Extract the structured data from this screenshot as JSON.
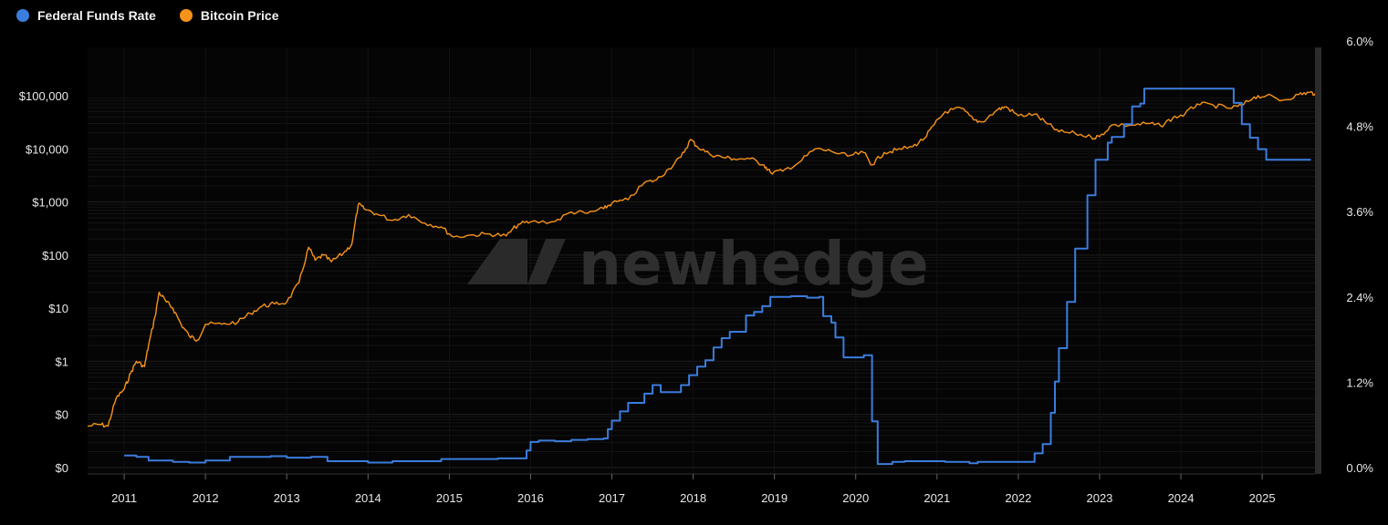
{
  "legend": {
    "items": [
      {
        "label": "Federal Funds Rate",
        "color": "#3b7ddd"
      },
      {
        "label": "Bitcoin Price",
        "color": "#f7931a"
      }
    ]
  },
  "watermark": {
    "text": "newhedge"
  },
  "chart_data": {
    "type": "line",
    "grid": true,
    "legend_position": "top-left",
    "x_ticks": [
      "2011",
      "2012",
      "2013",
      "2014",
      "2015",
      "2016",
      "2017",
      "2018",
      "2019",
      "2020",
      "2021",
      "2022",
      "2023",
      "2024",
      "2025"
    ],
    "x_range": [
      2010.55,
      2025.65
    ],
    "left_axis": {
      "scale": "log",
      "ticks": [
        {
          "label": "$0",
          "value": 0.01
        },
        {
          "label": "$0",
          "value": 0.1
        },
        {
          "label": "$1",
          "value": 1
        },
        {
          "label": "$10",
          "value": 10
        },
        {
          "label": "$100",
          "value": 100
        },
        {
          "label": "$1,000",
          "value": 1000
        },
        {
          "label": "$10,000",
          "value": 10000
        },
        {
          "label": "$100,000",
          "value": 100000
        }
      ]
    },
    "right_axis": {
      "scale": "linear",
      "range": [
        0,
        6
      ],
      "ticks": [
        "0.0%",
        "1.2%",
        "2.4%",
        "3.6%",
        "4.8%",
        "6.0%"
      ]
    },
    "series": [
      {
        "name": "Bitcoin Price",
        "axis": "left",
        "color": "#f7931a",
        "points": [
          [
            2010.55,
            0.06
          ],
          [
            2010.7,
            0.065
          ],
          [
            2010.8,
            0.06
          ],
          [
            2010.9,
            0.2
          ],
          [
            2011.0,
            0.3
          ],
          [
            2011.08,
            0.6
          ],
          [
            2011.15,
            1.0
          ],
          [
            2011.25,
            0.8
          ],
          [
            2011.3,
            2.0
          ],
          [
            2011.38,
            7.0
          ],
          [
            2011.43,
            20
          ],
          [
            2011.52,
            13
          ],
          [
            2011.6,
            10
          ],
          [
            2011.7,
            5
          ],
          [
            2011.8,
            3
          ],
          [
            2011.9,
            2.5
          ],
          [
            2012.0,
            5
          ],
          [
            2012.2,
            5
          ],
          [
            2012.4,
            5.5
          ],
          [
            2012.55,
            8
          ],
          [
            2012.7,
            11
          ],
          [
            2012.85,
            12
          ],
          [
            2013.0,
            13
          ],
          [
            2013.15,
            30
          ],
          [
            2013.27,
            140
          ],
          [
            2013.35,
            80
          ],
          [
            2013.45,
            100
          ],
          [
            2013.55,
            75
          ],
          [
            2013.7,
            110
          ],
          [
            2013.8,
            160
          ],
          [
            2013.88,
            900
          ],
          [
            2013.95,
            750
          ],
          [
            2014.1,
            600
          ],
          [
            2014.3,
            450
          ],
          [
            2014.5,
            580
          ],
          [
            2014.7,
            400
          ],
          [
            2014.9,
            340
          ],
          [
            2015.05,
            220
          ],
          [
            2015.3,
            240
          ],
          [
            2015.5,
            250
          ],
          [
            2015.7,
            230
          ],
          [
            2015.85,
            380
          ],
          [
            2016.0,
            420
          ],
          [
            2016.3,
            430
          ],
          [
            2016.5,
            650
          ],
          [
            2016.7,
            610
          ],
          [
            2016.9,
            750
          ],
          [
            2017.0,
            950
          ],
          [
            2017.2,
            1100
          ],
          [
            2017.4,
            2300
          ],
          [
            2017.55,
            2600
          ],
          [
            2017.7,
            4200
          ],
          [
            2017.85,
            7000
          ],
          [
            2017.97,
            15000
          ],
          [
            2018.05,
            11000
          ],
          [
            2018.2,
            8000
          ],
          [
            2018.35,
            7000
          ],
          [
            2018.5,
            6500
          ],
          [
            2018.7,
            6500
          ],
          [
            2018.87,
            5000
          ],
          [
            2018.95,
            3600
          ],
          [
            2019.1,
            3800
          ],
          [
            2019.3,
            5500
          ],
          [
            2019.5,
            10000
          ],
          [
            2019.7,
            9000
          ],
          [
            2019.9,
            7300
          ],
          [
            2020.1,
            8500
          ],
          [
            2020.2,
            5000
          ],
          [
            2020.35,
            8500
          ],
          [
            2020.5,
            9500
          ],
          [
            2020.7,
            11000
          ],
          [
            2020.85,
            16000
          ],
          [
            2020.97,
            29000
          ],
          [
            2021.1,
            50000
          ],
          [
            2021.3,
            58000
          ],
          [
            2021.45,
            35000
          ],
          [
            2021.55,
            32000
          ],
          [
            2021.75,
            55000
          ],
          [
            2021.85,
            62000
          ],
          [
            2022.0,
            42000
          ],
          [
            2022.2,
            45000
          ],
          [
            2022.35,
            30000
          ],
          [
            2022.5,
            21000
          ],
          [
            2022.7,
            19500
          ],
          [
            2022.9,
            16500
          ],
          [
            2023.0,
            17000
          ],
          [
            2023.15,
            28000
          ],
          [
            2023.4,
            28000
          ],
          [
            2023.6,
            30000
          ],
          [
            2023.75,
            27000
          ],
          [
            2023.9,
            38000
          ],
          [
            2024.05,
            45000
          ],
          [
            2024.2,
            70000
          ],
          [
            2024.4,
            66000
          ],
          [
            2024.6,
            58000
          ],
          [
            2024.75,
            65000
          ],
          [
            2024.9,
            95000
          ],
          [
            2025.05,
            100000
          ],
          [
            2025.25,
            82000
          ],
          [
            2025.45,
            105000
          ],
          [
            2025.58,
            115000
          ],
          [
            2025.65,
            110000
          ]
        ]
      },
      {
        "name": "Federal Funds Rate",
        "axis": "right",
        "color": "#3b7ddd",
        "step": true,
        "points": [
          [
            2011.0,
            0.17
          ],
          [
            2011.15,
            0.15
          ],
          [
            2011.3,
            0.1
          ],
          [
            2011.6,
            0.08
          ],
          [
            2011.8,
            0.07
          ],
          [
            2012.0,
            0.1
          ],
          [
            2012.3,
            0.15
          ],
          [
            2012.6,
            0.15
          ],
          [
            2012.8,
            0.16
          ],
          [
            2013.0,
            0.14
          ],
          [
            2013.3,
            0.15
          ],
          [
            2013.5,
            0.09
          ],
          [
            2013.8,
            0.09
          ],
          [
            2014.0,
            0.07
          ],
          [
            2014.3,
            0.09
          ],
          [
            2014.6,
            0.09
          ],
          [
            2014.9,
            0.12
          ],
          [
            2015.3,
            0.12
          ],
          [
            2015.6,
            0.13
          ],
          [
            2015.9,
            0.13
          ],
          [
            2015.95,
            0.24
          ],
          [
            2016.0,
            0.36
          ],
          [
            2016.1,
            0.38
          ],
          [
            2016.3,
            0.37
          ],
          [
            2016.5,
            0.39
          ],
          [
            2016.7,
            0.4
          ],
          [
            2016.9,
            0.41
          ],
          [
            2016.95,
            0.54
          ],
          [
            2017.0,
            0.66
          ],
          [
            2017.1,
            0.79
          ],
          [
            2017.2,
            0.91
          ],
          [
            2017.3,
            0.91
          ],
          [
            2017.4,
            1.04
          ],
          [
            2017.5,
            1.16
          ],
          [
            2017.6,
            1.06
          ],
          [
            2017.7,
            1.06
          ],
          [
            2017.85,
            1.16
          ],
          [
            2017.95,
            1.3
          ],
          [
            2018.05,
            1.42
          ],
          [
            2018.15,
            1.51
          ],
          [
            2018.25,
            1.69
          ],
          [
            2018.35,
            1.82
          ],
          [
            2018.45,
            1.91
          ],
          [
            2018.55,
            1.91
          ],
          [
            2018.65,
            2.14
          ],
          [
            2018.75,
            2.19
          ],
          [
            2018.85,
            2.27
          ],
          [
            2018.95,
            2.4
          ],
          [
            2019.05,
            2.4
          ],
          [
            2019.2,
            2.41
          ],
          [
            2019.4,
            2.39
          ],
          [
            2019.55,
            2.4
          ],
          [
            2019.6,
            2.13
          ],
          [
            2019.7,
            2.04
          ],
          [
            2019.75,
            1.83
          ],
          [
            2019.85,
            1.55
          ],
          [
            2020.0,
            1.55
          ],
          [
            2020.1,
            1.58
          ],
          [
            2020.2,
            0.65
          ],
          [
            2020.27,
            0.05
          ],
          [
            2020.45,
            0.08
          ],
          [
            2020.6,
            0.09
          ],
          [
            2020.9,
            0.09
          ],
          [
            2021.1,
            0.08
          ],
          [
            2021.4,
            0.06
          ],
          [
            2021.5,
            0.08
          ],
          [
            2021.7,
            0.08
          ],
          [
            2021.9,
            0.08
          ],
          [
            2022.0,
            0.08
          ],
          [
            2022.2,
            0.2
          ],
          [
            2022.3,
            0.33
          ],
          [
            2022.4,
            0.77
          ],
          [
            2022.45,
            1.21
          ],
          [
            2022.5,
            1.68
          ],
          [
            2022.6,
            2.33
          ],
          [
            2022.7,
            3.08
          ],
          [
            2022.75,
            3.08
          ],
          [
            2022.85,
            3.83
          ],
          [
            2022.95,
            4.33
          ],
          [
            2023.0,
            4.33
          ],
          [
            2023.1,
            4.57
          ],
          [
            2023.15,
            4.65
          ],
          [
            2023.3,
            4.83
          ],
          [
            2023.4,
            5.08
          ],
          [
            2023.5,
            5.12
          ],
          [
            2023.55,
            5.33
          ],
          [
            2023.7,
            5.33
          ],
          [
            2024.0,
            5.33
          ],
          [
            2024.3,
            5.33
          ],
          [
            2024.55,
            5.33
          ],
          [
            2024.65,
            5.13
          ],
          [
            2024.75,
            4.83
          ],
          [
            2024.85,
            4.64
          ],
          [
            2024.95,
            4.48
          ],
          [
            2025.05,
            4.33
          ],
          [
            2025.3,
            4.33
          ],
          [
            2025.5,
            4.33
          ],
          [
            2025.6,
            4.33
          ]
        ]
      }
    ]
  }
}
